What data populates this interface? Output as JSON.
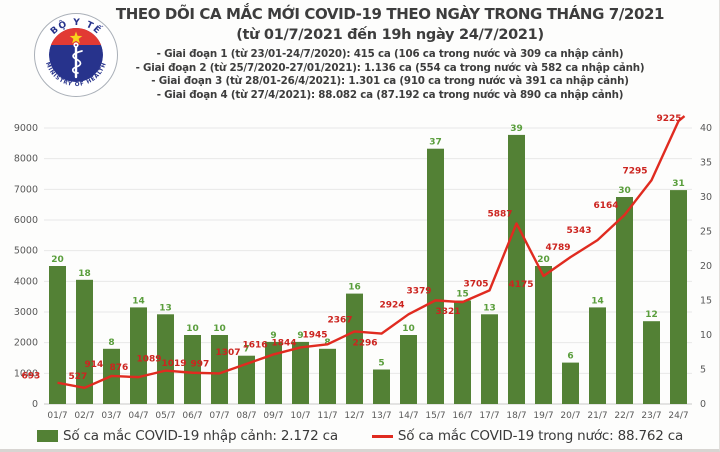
{
  "header": {
    "title": "THEO DÕI CA MẮC MỚI COVID-19 THEO NGÀY TRONG THÁNG 7/2021",
    "subtitle": "(từ 01/7/2021 đến 19h ngày 24/7/2021)",
    "phases": [
      "- Giai đoạn 1 (từ 23/01-24/7/2020): 415 ca (106 ca trong nước và 309 ca nhập cảnh)",
      "- Giai đoạn 2 (từ 25/7/2020-27/01/2021): 1.136 ca (554 ca trong nước và 582 ca nhập cảnh)",
      "- Giai đoạn 3 (từ 28/01-26/4/2021): 1.301 ca (910 ca trong nước và 391 ca nhập cảnh)",
      "- Giai đoạn 4 (từ 27/4/2021): 88.082 ca (87.192 ca trong nước và 890 ca nhập cảnh)"
    ],
    "logo": {
      "top_text": "BỘ Y TẾ",
      "bottom_text": "MINISTRY OF HEALTH",
      "navy": "#27338c",
      "red": "#e23a34",
      "gold": "#f8d21c"
    }
  },
  "chart_data": {
    "type": "bar",
    "note": "combo chart: bars (imported cases, right axis) + line (domestic cases, left axis)",
    "title": "THEO DÕI CA MẮC MỚI COVID-19 THEO NGÀY TRONG THÁNG 7/2021",
    "categories": [
      "01/7",
      "02/7",
      "03/7",
      "04/7",
      "05/7",
      "06/7",
      "07/7",
      "08/7",
      "09/7",
      "10/7",
      "11/7",
      "12/7",
      "13/7",
      "14/7",
      "15/7",
      "16/7",
      "17/7",
      "18/7",
      "19/7",
      "20/7",
      "21/7",
      "22/7",
      "23/7",
      "24/7"
    ],
    "series": [
      {
        "name": "Số ca mắc COVID-19 nhập cảnh",
        "type": "bar",
        "axis": "right",
        "color": "#538135",
        "label_color": "#5a9e3c",
        "values": [
          20,
          18,
          8,
          14,
          13,
          10,
          10,
          7,
          9,
          9,
          8,
          16,
          5,
          10,
          37,
          15,
          13,
          39,
          20,
          6,
          14,
          30,
          12,
          31
        ]
      },
      {
        "name": "Số ca mắc COVID-19 trong nước",
        "type": "line",
        "axis": "left",
        "color": "#e02b20",
        "label_color": "#cc241f",
        "values": [
          693,
          527,
          914,
          876,
          1089,
          1019,
          997,
          1307,
          1616,
          1844,
          1945,
          2367,
          2296,
          2924,
          3379,
          3321,
          3705,
          5887,
          4175,
          4789,
          5343,
          6164,
          7295,
          9225
        ]
      }
    ],
    "left_axis": {
      "min": 0,
      "max": 9000,
      "step": 1000,
      "ticks": [
        "9000",
        "8000",
        "7000",
        "6000",
        "5000",
        "4000",
        "3000",
        "2000",
        "1000",
        "0"
      ]
    },
    "right_axis": {
      "min": 0,
      "max": 40,
      "step": 5,
      "ticks": [
        "40",
        "35",
        "30",
        "25",
        "20",
        "15",
        "10",
        "5",
        "0"
      ]
    },
    "grid": true,
    "grid_color": "#e8e8e8",
    "axis_text_color": "#595959",
    "legend_position": "bottom"
  },
  "legend": {
    "bar_label": "Số ca mắc COVID-19 nhập cảnh: 2.172 ca",
    "line_label": "Số ca mắc COVID-19 trong nước: 88.762 ca"
  }
}
